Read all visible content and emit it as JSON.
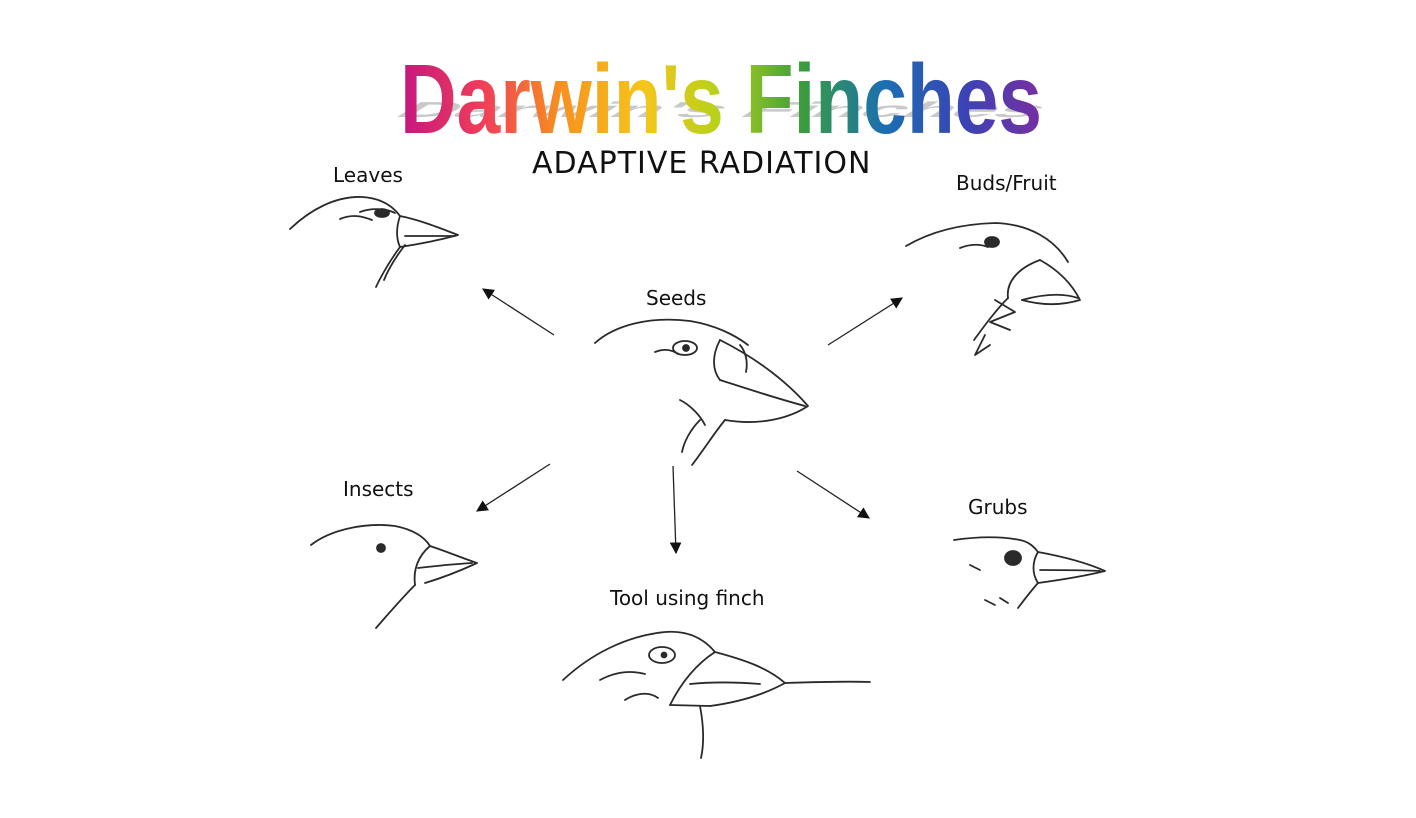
{
  "title": "Darwin's Finches",
  "title_gradient": [
    "#c2187f",
    "#ef3c5b",
    "#f7911e",
    "#f6c51a",
    "#b3d21c",
    "#3a9c3e",
    "#1b6fb1",
    "#3a43b6",
    "#7a2ea0"
  ],
  "subtitle": "ADAPTIVE RADIATION",
  "nodes": {
    "seeds": "Seeds",
    "leaves": "Leaves",
    "buds_fruit": "Buds/Fruit",
    "insects": "Insects",
    "grubs": "Grubs",
    "tool_using": "Tool using finch"
  },
  "icons": {
    "seeds": "finch-seed-eater-icon",
    "leaves": "finch-leaf-eater-icon",
    "buds_fruit": "finch-fruit-eater-icon",
    "insects": "finch-insect-eater-icon",
    "grubs": "finch-grub-eater-icon",
    "tool_using": "finch-tool-using-icon"
  },
  "edges": [
    {
      "from": "Seeds",
      "to": "Leaves"
    },
    {
      "from": "Seeds",
      "to": "Buds/Fruit"
    },
    {
      "from": "Seeds",
      "to": "Insects"
    },
    {
      "from": "Seeds",
      "to": "Tool using finch"
    },
    {
      "from": "Seeds",
      "to": "Grubs"
    }
  ]
}
